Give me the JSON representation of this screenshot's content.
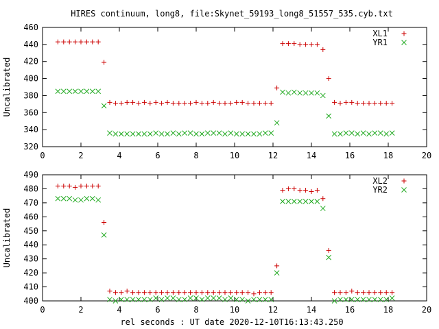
{
  "title": "HIRES continuum, long8, file:Skynet_59193_long8_51557_535.cyb.txt",
  "xlabel": "rel seconds : UT date 2020-12-10T16:13:43.250",
  "colors": {
    "red": "#cc0000",
    "green": "#22aa22"
  },
  "chart_data": [
    {
      "type": "scatter",
      "ylabel": "Uncalibrated",
      "xlim": [
        0,
        20
      ],
      "ylim": [
        320,
        460
      ],
      "xticks": [
        0,
        2,
        4,
        6,
        8,
        10,
        12,
        14,
        16,
        18,
        20
      ],
      "yticks": [
        320,
        340,
        360,
        380,
        400,
        420,
        440,
        460
      ],
      "legend": "top-right",
      "series": [
        {
          "name": "XL1",
          "marker": "plus",
          "color": "#cc0000",
          "x": [
            0.8,
            1.1,
            1.4,
            1.7,
            2.0,
            2.3,
            2.6,
            2.9,
            3.2,
            3.5,
            3.8,
            4.1,
            4.4,
            4.7,
            5.0,
            5.3,
            5.6,
            5.9,
            6.2,
            6.5,
            6.8,
            7.1,
            7.4,
            7.7,
            8.0,
            8.3,
            8.6,
            8.9,
            9.2,
            9.5,
            9.8,
            10.1,
            10.4,
            10.7,
            11.0,
            11.3,
            11.6,
            11.9,
            12.2,
            12.5,
            12.8,
            13.1,
            13.4,
            13.7,
            14.0,
            14.3,
            14.6,
            14.9,
            15.2,
            15.5,
            15.8,
            16.1,
            16.4,
            16.7,
            17.0,
            17.3,
            17.6,
            17.9,
            18.2
          ],
          "y": [
            443,
            443,
            443,
            443,
            443,
            443,
            443,
            443,
            419,
            372,
            371,
            371,
            372,
            372,
            371,
            372,
            371,
            372,
            371,
            372,
            371,
            371,
            371,
            371,
            372,
            371,
            371,
            372,
            371,
            371,
            371,
            372,
            372,
            371,
            371,
            371,
            371,
            371,
            389,
            441,
            441,
            441,
            440,
            440,
            440,
            440,
            434,
            400,
            372,
            371,
            372,
            372,
            371,
            371,
            371,
            371,
            371,
            371,
            371
          ]
        },
        {
          "name": "YR1",
          "marker": "x",
          "color": "#22aa22",
          "x": [
            0.8,
            1.1,
            1.4,
            1.7,
            2.0,
            2.3,
            2.6,
            2.9,
            3.2,
            3.5,
            3.8,
            4.1,
            4.4,
            4.7,
            5.0,
            5.3,
            5.6,
            5.9,
            6.2,
            6.5,
            6.8,
            7.1,
            7.4,
            7.7,
            8.0,
            8.3,
            8.6,
            8.9,
            9.2,
            9.5,
            9.8,
            10.1,
            10.4,
            10.7,
            11.0,
            11.3,
            11.6,
            11.9,
            12.2,
            12.5,
            12.8,
            13.1,
            13.4,
            13.7,
            14.0,
            14.3,
            14.6,
            14.9,
            15.2,
            15.5,
            15.8,
            16.1,
            16.4,
            16.7,
            17.0,
            17.3,
            17.6,
            17.9,
            18.2
          ],
          "y": [
            385,
            385,
            385,
            385,
            385,
            385,
            385,
            385,
            368,
            336,
            335,
            335,
            335,
            335,
            335,
            335,
            335,
            336,
            335,
            335,
            336,
            335,
            336,
            336,
            335,
            335,
            336,
            336,
            336,
            335,
            336,
            335,
            335,
            335,
            335,
            335,
            336,
            336,
            348,
            384,
            383,
            384,
            383,
            383,
            383,
            383,
            380,
            356,
            335,
            335,
            336,
            336,
            335,
            336,
            335,
            336,
            336,
            335,
            336
          ]
        }
      ]
    },
    {
      "type": "scatter",
      "ylabel": "Uncalibrated",
      "xlim": [
        0,
        20
      ],
      "ylim": [
        400,
        490
      ],
      "xticks": [
        0,
        2,
        4,
        6,
        8,
        10,
        12,
        14,
        16,
        18,
        20
      ],
      "yticks": [
        400,
        410,
        420,
        430,
        440,
        450,
        460,
        470,
        480,
        490
      ],
      "legend": "top-right",
      "series": [
        {
          "name": "XL2",
          "marker": "plus",
          "color": "#cc0000",
          "x": [
            0.8,
            1.1,
            1.4,
            1.7,
            2.0,
            2.3,
            2.6,
            2.9,
            3.2,
            3.5,
            3.8,
            4.1,
            4.4,
            4.7,
            5.0,
            5.3,
            5.6,
            5.9,
            6.2,
            6.5,
            6.8,
            7.1,
            7.4,
            7.7,
            8.0,
            8.3,
            8.6,
            8.9,
            9.2,
            9.5,
            9.8,
            10.1,
            10.4,
            10.7,
            11.0,
            11.3,
            11.6,
            11.9,
            12.2,
            12.5,
            12.8,
            13.1,
            13.4,
            13.7,
            14.0,
            14.3,
            14.6,
            14.9,
            15.2,
            15.5,
            15.8,
            16.1,
            16.4,
            16.7,
            17.0,
            17.3,
            17.6,
            17.9,
            18.2
          ],
          "y": [
            482,
            482,
            482,
            481,
            482,
            482,
            482,
            482,
            456,
            407,
            406,
            406,
            407,
            406,
            406,
            406,
            406,
            406,
            406,
            406,
            406,
            406,
            406,
            406,
            406,
            406,
            406,
            406,
            406,
            406,
            406,
            406,
            406,
            406,
            405,
            406,
            406,
            406,
            425,
            479,
            480,
            480,
            479,
            479,
            478,
            479,
            473,
            436,
            406,
            406,
            406,
            407,
            406,
            406,
            406,
            406,
            406,
            406,
            406
          ]
        },
        {
          "name": "YR2",
          "marker": "x",
          "color": "#22aa22",
          "x": [
            0.8,
            1.1,
            1.4,
            1.7,
            2.0,
            2.3,
            2.6,
            2.9,
            3.2,
            3.5,
            3.8,
            4.1,
            4.4,
            4.7,
            5.0,
            5.3,
            5.6,
            5.9,
            6.2,
            6.5,
            6.8,
            7.1,
            7.4,
            7.7,
            8.0,
            8.3,
            8.6,
            8.9,
            9.2,
            9.5,
            9.8,
            10.1,
            10.4,
            10.7,
            11.0,
            11.3,
            11.6,
            11.9,
            12.2,
            12.5,
            12.8,
            13.1,
            13.4,
            13.7,
            14.0,
            14.3,
            14.6,
            14.9,
            15.2,
            15.5,
            15.8,
            16.1,
            16.4,
            16.7,
            17.0,
            17.3,
            17.6,
            17.9,
            18.2
          ],
          "y": [
            473,
            473,
            473,
            472,
            472,
            473,
            473,
            472,
            447,
            401,
            400,
            401,
            401,
            401,
            401,
            401,
            401,
            402,
            401,
            402,
            402,
            401,
            401,
            402,
            402,
            401,
            402,
            402,
            402,
            401,
            402,
            401,
            401,
            400,
            401,
            401,
            401,
            401,
            420,
            471,
            471,
            471,
            471,
            471,
            471,
            471,
            466,
            431,
            400,
            401,
            401,
            401,
            401,
            401,
            401,
            401,
            401,
            401,
            402
          ]
        }
      ]
    }
  ]
}
